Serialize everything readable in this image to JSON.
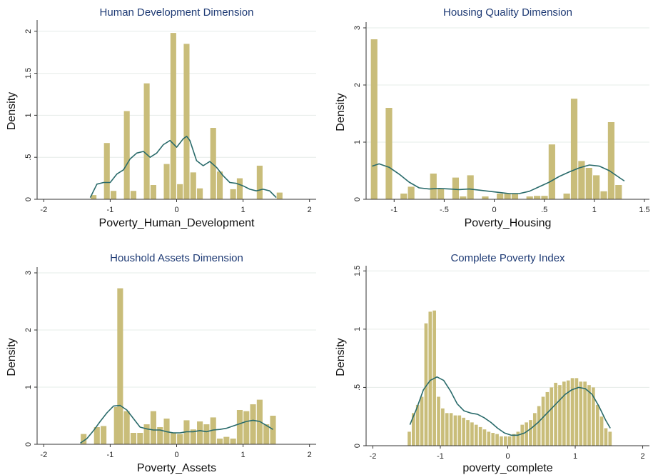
{
  "chart_data": [
    {
      "type": "bar",
      "title": "Human Development Dimension",
      "xlabel": "Poverty_Human_Development",
      "ylabel": "Density",
      "xlim": [
        -2.1,
        2.1
      ],
      "ylim": [
        0,
        2.1
      ],
      "x_ticks": [
        -2,
        -1,
        0,
        1,
        2
      ],
      "x_tick_labels": [
        "-2",
        "-1",
        "0",
        "1",
        "2"
      ],
      "y_ticks": [
        0,
        0.5,
        1,
        1.5,
        2
      ],
      "y_tick_labels": [
        "0",
        ".5",
        "1",
        "1.5",
        "2"
      ],
      "grid": true,
      "bar_color": "#c9bd7a",
      "bar_width": 0.1,
      "bars": {
        "x": [
          -1.25,
          -1.15,
          -1.05,
          -0.95,
          -0.85,
          -0.75,
          -0.65,
          -0.55,
          -0.45,
          -0.35,
          -0.25,
          -0.15,
          -0.05,
          0.05,
          0.15,
          0.25,
          0.35,
          0.45,
          0.55,
          0.65,
          0.75,
          0.85,
          0.95,
          1.05,
          1.15,
          1.25,
          1.35,
          1.45,
          1.55
        ],
        "values": [
          0.05,
          0.0,
          0.67,
          0.1,
          0.0,
          1.05,
          0.1,
          0.0,
          1.38,
          0.17,
          0.0,
          0.42,
          1.98,
          0.18,
          1.85,
          0.32,
          0.13,
          0.0,
          0.85,
          0.33,
          0.0,
          0.12,
          0.25,
          0.0,
          0.0,
          0.4,
          0.0,
          0.0,
          0.08
        ]
      },
      "density_line": {
        "color": "#2a6b6b",
        "x": [
          -1.3,
          -1.2,
          -1.1,
          -1.0,
          -0.9,
          -0.8,
          -0.7,
          -0.6,
          -0.5,
          -0.4,
          -0.3,
          -0.2,
          -0.1,
          0.0,
          0.1,
          0.15,
          0.2,
          0.3,
          0.4,
          0.5,
          0.6,
          0.7,
          0.8,
          0.9,
          1.0,
          1.1,
          1.2,
          1.3,
          1.4,
          1.5
        ],
        "y": [
          0.02,
          0.18,
          0.2,
          0.2,
          0.3,
          0.35,
          0.48,
          0.55,
          0.57,
          0.5,
          0.55,
          0.65,
          0.7,
          0.62,
          0.72,
          0.75,
          0.7,
          0.46,
          0.4,
          0.45,
          0.38,
          0.28,
          0.2,
          0.19,
          0.16,
          0.12,
          0.1,
          0.12,
          0.1,
          0.02
        ]
      }
    },
    {
      "type": "bar",
      "title": "Housing Quality Dimension",
      "xlabel": "Poverty_Housing",
      "ylabel": "Density",
      "xlim": [
        -1.28,
        1.55
      ],
      "ylim": [
        0,
        3.05
      ],
      "x_ticks": [
        -1,
        -0.5,
        0,
        0.5,
        1,
        1.5
      ],
      "x_tick_labels": [
        "-1",
        "-.5",
        "0",
        ".5",
        "1",
        "1.5"
      ],
      "y_ticks": [
        0,
        1,
        2,
        3
      ],
      "y_tick_labels": [
        "0",
        "1",
        "2",
        "3"
      ],
      "grid": true,
      "bar_color": "#c9bd7a",
      "bar_width": 0.074,
      "bars": {
        "x": [
          -1.2,
          -1.126,
          -1.052,
          -0.978,
          -0.904,
          -0.83,
          -0.756,
          -0.682,
          -0.608,
          -0.534,
          -0.46,
          -0.386,
          -0.312,
          -0.238,
          -0.164,
          -0.09,
          -0.016,
          0.058,
          0.132,
          0.206,
          0.28,
          0.354,
          0.428,
          0.502,
          0.576,
          0.65,
          0.724,
          0.798,
          0.872,
          0.946,
          1.02,
          1.094,
          1.168,
          1.242,
          1.29
        ],
        "values": [
          2.8,
          0.0,
          1.6,
          0.0,
          0.1,
          0.22,
          0.0,
          0.0,
          0.45,
          0.18,
          0.0,
          0.38,
          0.05,
          0.42,
          0.0,
          0.05,
          0.0,
          0.1,
          0.1,
          0.1,
          0.0,
          0.05,
          0.06,
          0.06,
          0.96,
          0.0,
          0.1,
          1.76,
          0.67,
          0.55,
          0.42,
          0.14,
          1.35,
          0.25,
          0.0
        ]
      },
      "density_line": {
        "color": "#2a6b6b",
        "x": [
          -1.22,
          -1.15,
          -1.05,
          -0.95,
          -0.85,
          -0.75,
          -0.65,
          -0.55,
          -0.45,
          -0.35,
          -0.25,
          -0.15,
          -0.05,
          0.05,
          0.15,
          0.25,
          0.35,
          0.45,
          0.55,
          0.65,
          0.75,
          0.85,
          0.95,
          1.05,
          1.15,
          1.25,
          1.3
        ],
        "y": [
          0.58,
          0.62,
          0.56,
          0.44,
          0.3,
          0.2,
          0.18,
          0.19,
          0.18,
          0.17,
          0.18,
          0.16,
          0.14,
          0.12,
          0.1,
          0.1,
          0.14,
          0.22,
          0.3,
          0.4,
          0.48,
          0.55,
          0.6,
          0.58,
          0.5,
          0.38,
          0.32
        ]
      }
    },
    {
      "type": "bar",
      "title": "Houshold Assets Dimension",
      "xlabel": "Poverty_Assets",
      "ylabel": "Density",
      "xlim": [
        -2.1,
        2.1
      ],
      "ylim": [
        0,
        3.05
      ],
      "x_ticks": [
        -2,
        -1,
        0,
        1,
        2
      ],
      "x_tick_labels": [
        "-2",
        "-1",
        "0",
        "1",
        "2"
      ],
      "y_ticks": [
        0,
        1,
        2,
        3
      ],
      "y_tick_labels": [
        "0",
        "1",
        "2",
        "3"
      ],
      "grid": true,
      "bar_color": "#c9bd7a",
      "bar_width": 0.1,
      "bars": {
        "x": [
          -1.4,
          -1.3,
          -1.2,
          -1.1,
          -1.0,
          -0.9,
          -0.85,
          -0.75,
          -0.65,
          -0.55,
          -0.45,
          -0.35,
          -0.25,
          -0.15,
          -0.05,
          0.05,
          0.15,
          0.25,
          0.35,
          0.45,
          0.55,
          0.65,
          0.75,
          0.85,
          0.95,
          1.05,
          1.15,
          1.25,
          1.35,
          1.45
        ],
        "values": [
          0.18,
          0.0,
          0.3,
          0.32,
          0.0,
          0.65,
          2.73,
          0.58,
          0.2,
          0.2,
          0.35,
          0.58,
          0.3,
          0.45,
          0.2,
          0.18,
          0.42,
          0.26,
          0.4,
          0.35,
          0.47,
          0.1,
          0.13,
          0.1,
          0.6,
          0.58,
          0.7,
          0.78,
          0.35,
          0.5
        ]
      },
      "density_line": {
        "color": "#2a6b6b",
        "x": [
          -1.45,
          -1.35,
          -1.25,
          -1.15,
          -1.05,
          -0.95,
          -0.85,
          -0.75,
          -0.65,
          -0.55,
          -0.45,
          -0.35,
          -0.25,
          -0.15,
          -0.05,
          0.05,
          0.15,
          0.25,
          0.35,
          0.45,
          0.55,
          0.65,
          0.75,
          0.85,
          0.95,
          1.05,
          1.15,
          1.25,
          1.35,
          1.45
        ],
        "y": [
          0.02,
          0.1,
          0.24,
          0.4,
          0.55,
          0.67,
          0.68,
          0.6,
          0.45,
          0.3,
          0.27,
          0.25,
          0.25,
          0.22,
          0.2,
          0.2,
          0.22,
          0.22,
          0.24,
          0.22,
          0.25,
          0.26,
          0.28,
          0.32,
          0.36,
          0.4,
          0.42,
          0.4,
          0.33,
          0.26
        ]
      }
    },
    {
      "type": "bar",
      "title": "Complete Poverty Index",
      "xlabel": "poverty_complete",
      "ylabel": "Density",
      "xlim": [
        -2.1,
        2.1
      ],
      "ylim": [
        0,
        1.52
      ],
      "x_ticks": [
        -2,
        -1,
        0,
        1,
        2
      ],
      "x_tick_labels": [
        "-2",
        "-1",
        "0",
        "1",
        "2"
      ],
      "y_ticks": [
        0,
        0.5,
        1,
        1.5
      ],
      "y_tick_labels": [
        "0",
        ".5",
        "1",
        "1.5"
      ],
      "grid": true,
      "bar_color": "#c9bd7a",
      "bar_width": 0.062,
      "bars": {
        "x": [
          -1.46,
          -1.398,
          -1.336,
          -1.274,
          -1.212,
          -1.15,
          -1.088,
          -1.026,
          -0.964,
          -0.902,
          -0.84,
          -0.778,
          -0.716,
          -0.654,
          -0.592,
          -0.53,
          -0.468,
          -0.406,
          -0.344,
          -0.282,
          -0.22,
          -0.158,
          -0.096,
          -0.034,
          0.028,
          0.09,
          0.152,
          0.214,
          0.276,
          0.338,
          0.4,
          0.462,
          0.524,
          0.586,
          0.648,
          0.71,
          0.772,
          0.834,
          0.896,
          0.958,
          1.02,
          1.082,
          1.144,
          1.206,
          1.268,
          1.33,
          1.392,
          1.454,
          1.516
        ],
        "values": [
          0.12,
          0.28,
          0.35,
          0.42,
          1.05,
          1.15,
          1.16,
          0.42,
          0.32,
          0.28,
          0.28,
          0.26,
          0.26,
          0.24,
          0.22,
          0.2,
          0.18,
          0.16,
          0.14,
          0.12,
          0.11,
          0.1,
          0.08,
          0.08,
          0.08,
          0.1,
          0.12,
          0.18,
          0.2,
          0.22,
          0.28,
          0.34,
          0.42,
          0.46,
          0.5,
          0.54,
          0.52,
          0.55,
          0.56,
          0.58,
          0.58,
          0.55,
          0.55,
          0.52,
          0.5,
          0.35,
          0.25,
          0.15,
          0.12
        ]
      },
      "density_line": {
        "color": "#2a6b6b",
        "x": [
          -1.45,
          -1.35,
          -1.25,
          -1.15,
          -1.05,
          -0.95,
          -0.85,
          -0.75,
          -0.65,
          -0.55,
          -0.45,
          -0.35,
          -0.25,
          -0.15,
          -0.05,
          0.05,
          0.15,
          0.25,
          0.35,
          0.45,
          0.55,
          0.65,
          0.75,
          0.85,
          0.95,
          1.05,
          1.15,
          1.25,
          1.35,
          1.45,
          1.52
        ],
        "y": [
          0.18,
          0.32,
          0.48,
          0.56,
          0.59,
          0.56,
          0.47,
          0.36,
          0.3,
          0.28,
          0.27,
          0.24,
          0.2,
          0.15,
          0.11,
          0.09,
          0.09,
          0.11,
          0.15,
          0.2,
          0.26,
          0.32,
          0.38,
          0.44,
          0.48,
          0.5,
          0.49,
          0.44,
          0.34,
          0.22,
          0.15
        ]
      }
    }
  ]
}
